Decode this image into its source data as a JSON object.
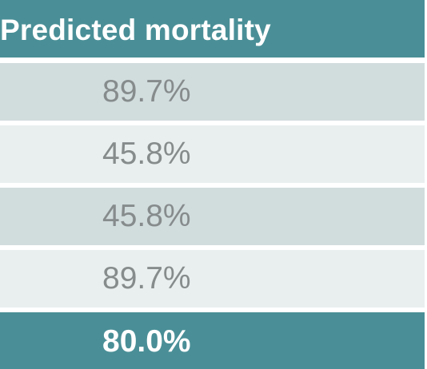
{
  "table": {
    "header": "Predicted mortality",
    "rows": [
      {
        "value": "89.7%"
      },
      {
        "value": "45.8%"
      },
      {
        "value": "45.8%"
      },
      {
        "value": "89.7%"
      }
    ],
    "total": "80.0%"
  },
  "colors": {
    "header_bg": "#4a8f97",
    "row_dark_bg": "#d1dcdd",
    "row_light_bg": "#e9efef",
    "cell_text": "#868b8c",
    "header_text": "#ffffff"
  }
}
